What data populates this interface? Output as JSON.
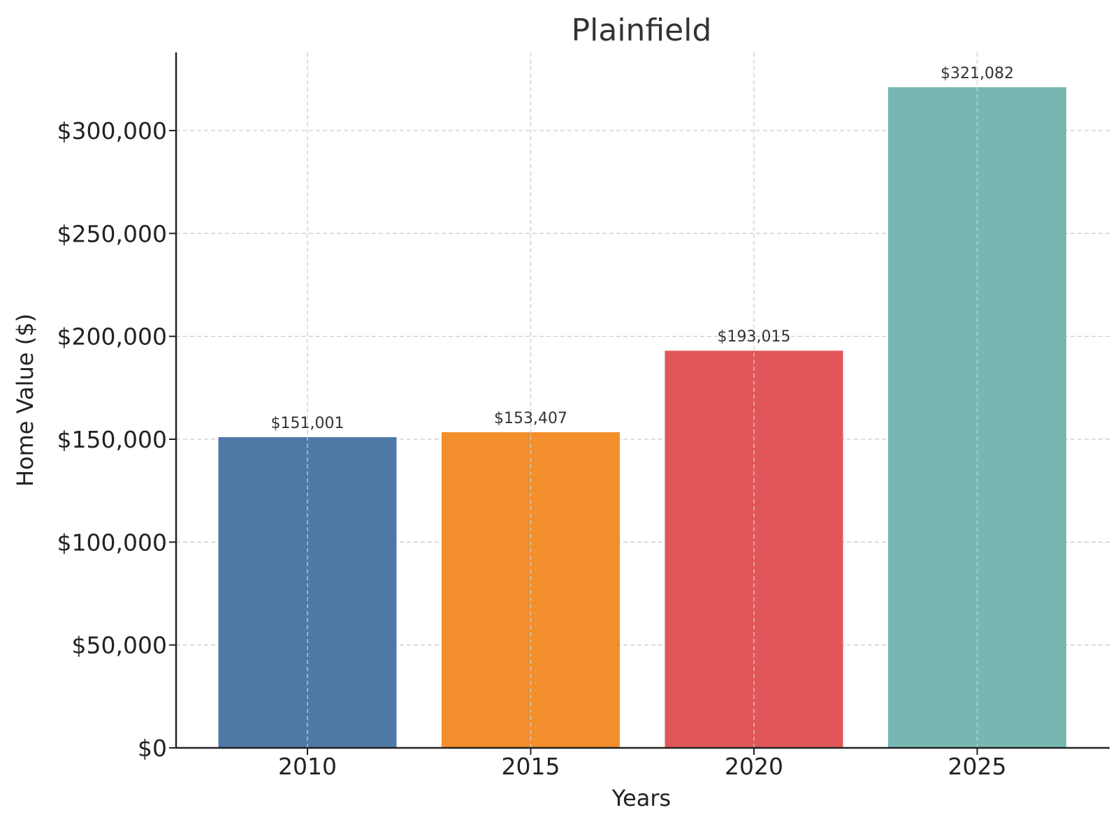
{
  "chart_data": {
    "type": "bar",
    "title": "Plainfield",
    "xlabel": "Years",
    "ylabel": "Home Value ($)",
    "categories": [
      "2010",
      "2015",
      "2020",
      "2025"
    ],
    "values": [
      151001,
      153407,
      193015,
      321082
    ],
    "value_labels": [
      "$151,001",
      "$153,407",
      "$193,015",
      "$321,082"
    ],
    "colors": [
      "#4e79a7",
      "#f28e2b",
      "#e15759",
      "#76b7b2"
    ],
    "ylim": [
      0,
      338000
    ],
    "yticks": [
      0,
      50000,
      100000,
      150000,
      200000,
      250000,
      300000
    ],
    "ytick_labels": [
      "$0",
      "$50,000",
      "$100,000",
      "$150,000",
      "$200,000",
      "$250,000",
      "$300,000"
    ],
    "grid": true,
    "legend": "none"
  }
}
